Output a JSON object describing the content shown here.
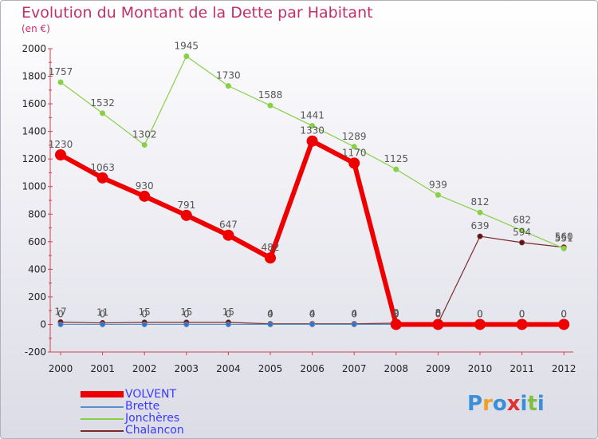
{
  "header": {
    "title": "Evolution du Montant de la Dette par Habitant",
    "unit": "(en €)"
  },
  "chart_data": {
    "type": "line",
    "title": "Evolution du Montant de la Dette par Habitant",
    "ylabel": "(en €)",
    "xlabel": "",
    "ylim": [
      -200,
      2000
    ],
    "yticks": [
      -200,
      0,
      200,
      400,
      600,
      800,
      1000,
      1200,
      1400,
      1600,
      1800,
      2000
    ],
    "categories": [
      "2000",
      "2001",
      "2002",
      "2003",
      "2004",
      "2005",
      "2006",
      "2007",
      "2008",
      "2009",
      "2010",
      "2011",
      "2012"
    ],
    "grid": false,
    "legend_position": "bottom-left",
    "series": [
      {
        "name": "Chalancon",
        "color": "#7a2a2a",
        "values": [
          17,
          11,
          15,
          15,
          15,
          4,
          4,
          4,
          9,
          8,
          639,
          594,
          560
        ],
        "labels": [
          "17",
          "11",
          "15",
          "15",
          "15",
          "4",
          "4",
          "4",
          "9",
          "8",
          "639",
          "594",
          "560"
        ]
      },
      {
        "name": "Brette",
        "color": "#5a8fc8",
        "values": [
          0,
          0,
          0,
          0,
          0,
          0,
          0,
          0,
          0,
          0,
          0,
          0,
          0
        ],
        "labels": [
          "0",
          "0",
          "0",
          "0",
          "0",
          "0",
          "0",
          "0",
          "0",
          "0",
          "0",
          "0",
          "0"
        ]
      },
      {
        "name": "Jonchères",
        "color": "#88d048",
        "values": [
          1757,
          1532,
          1302,
          1945,
          1730,
          1588,
          1441,
          1289,
          1125,
          939,
          812,
          682,
          551
        ],
        "labels": [
          "1757",
          "1532",
          "1302",
          "1945",
          "1730",
          "1588",
          "1441",
          "1289",
          "1125",
          "939",
          "812",
          "682",
          "551"
        ]
      },
      {
        "name": "VOLVENT",
        "color": "#ee0000",
        "values": [
          1230,
          1063,
          930,
          791,
          647,
          482,
          1330,
          1170,
          0,
          0,
          0,
          0,
          0
        ],
        "labels": [
          "1230",
          "1063",
          "930",
          "791",
          "647",
          "482",
          "1330",
          "1170",
          "0",
          "0",
          "0",
          "0",
          "0"
        ]
      }
    ]
  },
  "legend": {
    "items": [
      {
        "label": "VOLVENT",
        "color": "#ee0000"
      },
      {
        "label": "Brette",
        "color": "#5a8fc8"
      },
      {
        "label": "Jonchères",
        "color": "#88d048"
      },
      {
        "label": "Chalancon",
        "color": "#7a2a2a"
      }
    ]
  },
  "logo": {
    "letters": [
      "P",
      "r",
      "o",
      "x",
      "i",
      "t",
      "i"
    ],
    "colors": [
      "#3a8fd8",
      "#f0a020",
      "#3a8fd8",
      "#e03030",
      "#3a8fd8",
      "#80c040",
      "#3a8fd8"
    ]
  }
}
